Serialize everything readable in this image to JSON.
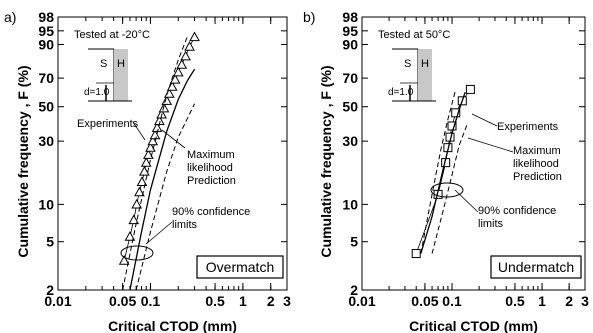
{
  "chart_data": [
    {
      "type": "line",
      "panel_label": "a)",
      "xlabel": "Critical CTOD (mm)",
      "ylabel": "Cumulative frequency , F (%)",
      "x_scale": "log",
      "y_scale": "weibull-probability",
      "xlim": [
        0.01,
        3
      ],
      "ylim": [
        2,
        98
      ],
      "x_ticks": [
        {
          "v": 0.01,
          "label": "0.01"
        },
        {
          "v": 0.05,
          "label": "0.05"
        },
        {
          "v": 0.1,
          "label": "0.1"
        },
        {
          "v": 0.5,
          "label": "0.5"
        },
        {
          "v": 1,
          "label": "1"
        },
        {
          "v": 2,
          "label": "2"
        },
        {
          "v": 3,
          "label": "3"
        }
      ],
      "y_ticks": [
        {
          "v": 2,
          "label": "2"
        },
        {
          "v": 5,
          "label": "5"
        },
        {
          "v": 10,
          "label": "10"
        },
        {
          "v": 30,
          "label": "30"
        },
        {
          "v": 50,
          "label": "50"
        },
        {
          "v": 70,
          "label": "70"
        },
        {
          "v": 90,
          "label": "90"
        },
        {
          "v": 95,
          "label": "95"
        },
        {
          "v": 98,
          "label": "98"
        }
      ],
      "test_note": "Tested at -20°C",
      "inset": {
        "left": "S",
        "right": "H",
        "dim": "d=1.0"
      },
      "box_label": "Overmatch",
      "annotations": {
        "experiments": "Experiments",
        "prediction": [
          "Maximum",
          "likelihood",
          "Prediction"
        ],
        "confidence": [
          "90% confidence",
          "limits"
        ]
      },
      "series": [
        {
          "role": "experiments",
          "marker": "triangle",
          "x": [
            0.052,
            0.06,
            0.066,
            0.071,
            0.076,
            0.081,
            0.086,
            0.09,
            0.095,
            0.1,
            0.106,
            0.112,
            0.118,
            0.125,
            0.132,
            0.14,
            0.15,
            0.16,
            0.172,
            0.185,
            0.2,
            0.218,
            0.24,
            0.265,
            0.3
          ],
          "y": [
            3.5,
            5.5,
            7.5,
            10,
            12.5,
            15,
            18,
            21,
            24,
            27,
            30,
            33,
            37,
            41,
            45,
            49,
            54,
            59,
            64,
            69,
            74,
            79,
            84,
            89,
            93
          ]
        },
        {
          "role": "prediction",
          "x": [
            0.06,
            0.08,
            0.1,
            0.15,
            0.2,
            0.25,
            0.3
          ],
          "y": [
            2,
            6,
            13,
            35,
            55,
            68,
            76
          ]
        },
        {
          "role": "confidence-left",
          "x": [
            0.05,
            0.07,
            0.1,
            0.15,
            0.2,
            0.25
          ],
          "y": [
            2,
            7,
            22,
            58,
            82,
            93
          ]
        },
        {
          "role": "confidence-right",
          "x": [
            0.07,
            0.1,
            0.15,
            0.2,
            0.3
          ],
          "y": [
            2,
            6,
            18,
            32,
            52
          ]
        }
      ]
    },
    {
      "type": "line",
      "panel_label": "b)",
      "xlabel": "Critical CTOD (mm)",
      "ylabel": "Cumulative frequency , F (%)",
      "x_scale": "log",
      "y_scale": "weibull-probability",
      "xlim": [
        0.01,
        3
      ],
      "ylim": [
        2,
        98
      ],
      "x_ticks": [
        {
          "v": 0.01,
          "label": "0.01"
        },
        {
          "v": 0.05,
          "label": "0.05"
        },
        {
          "v": 0.1,
          "label": "0.1"
        },
        {
          "v": 0.5,
          "label": "0.5"
        },
        {
          "v": 1,
          "label": "1"
        },
        {
          "v": 2,
          "label": "2"
        },
        {
          "v": 3,
          "label": "3"
        }
      ],
      "y_ticks": [
        {
          "v": 2,
          "label": "2"
        },
        {
          "v": 5,
          "label": "5"
        },
        {
          "v": 10,
          "label": "10"
        },
        {
          "v": 30,
          "label": "30"
        },
        {
          "v": 50,
          "label": "50"
        },
        {
          "v": 70,
          "label": "70"
        },
        {
          "v": 90,
          "label": "90"
        },
        {
          "v": 95,
          "label": "95"
        },
        {
          "v": 98,
          "label": "98"
        }
      ],
      "test_note": "Tested at 50°C",
      "inset": {
        "left": "S",
        "right": "H",
        "dim": "d=1.0"
      },
      "box_label": "Undermatch",
      "annotations": {
        "experiments": "Experiments",
        "prediction": [
          "Maximum",
          "likelihood",
          "Prediction"
        ],
        "confidence": [
          "90% confidence",
          "limits"
        ]
      },
      "series": [
        {
          "role": "experiments",
          "marker": "square",
          "x": [
            0.04,
            0.07,
            0.085,
            0.09,
            0.095,
            0.1,
            0.11,
            0.13,
            0.16
          ],
          "y": [
            4,
            12,
            21,
            27,
            32,
            38,
            46,
            54,
            62
          ]
        },
        {
          "role": "prediction",
          "x": [
            0.045,
            0.06,
            0.08,
            0.1,
            0.12,
            0.14
          ],
          "y": [
            4,
            8,
            19,
            34,
            48,
            60
          ]
        },
        {
          "role": "confidence-left",
          "x": [
            0.045,
            0.06,
            0.075,
            0.09,
            0.11
          ],
          "y": [
            4,
            12,
            26,
            42,
            62
          ]
        },
        {
          "role": "confidence-right",
          "x": [
            0.06,
            0.08,
            0.1,
            0.12,
            0.15
          ],
          "y": [
            4,
            9,
            17,
            28,
            40
          ]
        }
      ]
    }
  ]
}
